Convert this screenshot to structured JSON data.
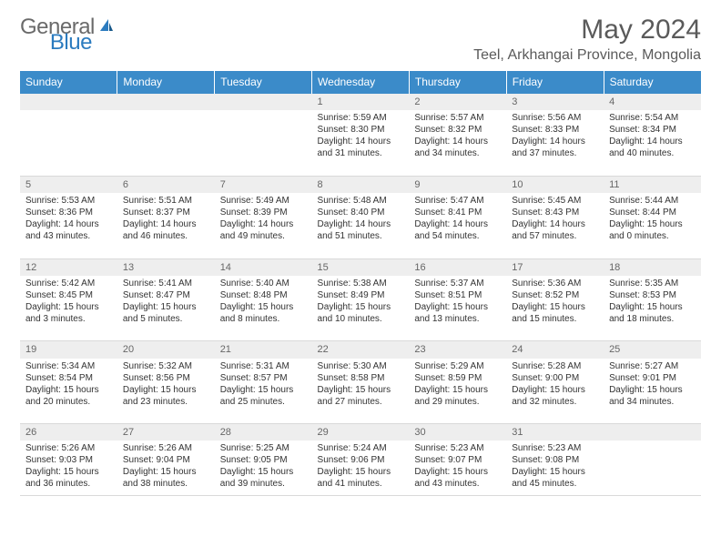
{
  "brand": {
    "general": "General",
    "blue": "Blue"
  },
  "title": "May 2024",
  "location": "Teel, Arkhangai Province, Mongolia",
  "colors": {
    "header_bg": "#3b8bc9",
    "header_text": "#ffffff",
    "daynum_bg": "#eeeeee",
    "border_top": "#3b8bc9",
    "cell_border": "#d9d9d9",
    "text": "#333333",
    "logo_gray": "#6a6a6a",
    "logo_blue": "#2b7bbf"
  },
  "weekdays": [
    "Sunday",
    "Monday",
    "Tuesday",
    "Wednesday",
    "Thursday",
    "Friday",
    "Saturday"
  ],
  "weeks": [
    {
      "nums": [
        "",
        "",
        "",
        "1",
        "2",
        "3",
        "4"
      ],
      "cells": [
        {},
        {},
        {},
        {
          "sunrise": "Sunrise: 5:59 AM",
          "sunset": "Sunset: 8:30 PM",
          "day1": "Daylight: 14 hours",
          "day2": "and 31 minutes."
        },
        {
          "sunrise": "Sunrise: 5:57 AM",
          "sunset": "Sunset: 8:32 PM",
          "day1": "Daylight: 14 hours",
          "day2": "and 34 minutes."
        },
        {
          "sunrise": "Sunrise: 5:56 AM",
          "sunset": "Sunset: 8:33 PM",
          "day1": "Daylight: 14 hours",
          "day2": "and 37 minutes."
        },
        {
          "sunrise": "Sunrise: 5:54 AM",
          "sunset": "Sunset: 8:34 PM",
          "day1": "Daylight: 14 hours",
          "day2": "and 40 minutes."
        }
      ]
    },
    {
      "nums": [
        "5",
        "6",
        "7",
        "8",
        "9",
        "10",
        "11"
      ],
      "cells": [
        {
          "sunrise": "Sunrise: 5:53 AM",
          "sunset": "Sunset: 8:36 PM",
          "day1": "Daylight: 14 hours",
          "day2": "and 43 minutes."
        },
        {
          "sunrise": "Sunrise: 5:51 AM",
          "sunset": "Sunset: 8:37 PM",
          "day1": "Daylight: 14 hours",
          "day2": "and 46 minutes."
        },
        {
          "sunrise": "Sunrise: 5:49 AM",
          "sunset": "Sunset: 8:39 PM",
          "day1": "Daylight: 14 hours",
          "day2": "and 49 minutes."
        },
        {
          "sunrise": "Sunrise: 5:48 AM",
          "sunset": "Sunset: 8:40 PM",
          "day1": "Daylight: 14 hours",
          "day2": "and 51 minutes."
        },
        {
          "sunrise": "Sunrise: 5:47 AM",
          "sunset": "Sunset: 8:41 PM",
          "day1": "Daylight: 14 hours",
          "day2": "and 54 minutes."
        },
        {
          "sunrise": "Sunrise: 5:45 AM",
          "sunset": "Sunset: 8:43 PM",
          "day1": "Daylight: 14 hours",
          "day2": "and 57 minutes."
        },
        {
          "sunrise": "Sunrise: 5:44 AM",
          "sunset": "Sunset: 8:44 PM",
          "day1": "Daylight: 15 hours",
          "day2": "and 0 minutes."
        }
      ]
    },
    {
      "nums": [
        "12",
        "13",
        "14",
        "15",
        "16",
        "17",
        "18"
      ],
      "cells": [
        {
          "sunrise": "Sunrise: 5:42 AM",
          "sunset": "Sunset: 8:45 PM",
          "day1": "Daylight: 15 hours",
          "day2": "and 3 minutes."
        },
        {
          "sunrise": "Sunrise: 5:41 AM",
          "sunset": "Sunset: 8:47 PM",
          "day1": "Daylight: 15 hours",
          "day2": "and 5 minutes."
        },
        {
          "sunrise": "Sunrise: 5:40 AM",
          "sunset": "Sunset: 8:48 PM",
          "day1": "Daylight: 15 hours",
          "day2": "and 8 minutes."
        },
        {
          "sunrise": "Sunrise: 5:38 AM",
          "sunset": "Sunset: 8:49 PM",
          "day1": "Daylight: 15 hours",
          "day2": "and 10 minutes."
        },
        {
          "sunrise": "Sunrise: 5:37 AM",
          "sunset": "Sunset: 8:51 PM",
          "day1": "Daylight: 15 hours",
          "day2": "and 13 minutes."
        },
        {
          "sunrise": "Sunrise: 5:36 AM",
          "sunset": "Sunset: 8:52 PM",
          "day1": "Daylight: 15 hours",
          "day2": "and 15 minutes."
        },
        {
          "sunrise": "Sunrise: 5:35 AM",
          "sunset": "Sunset: 8:53 PM",
          "day1": "Daylight: 15 hours",
          "day2": "and 18 minutes."
        }
      ]
    },
    {
      "nums": [
        "19",
        "20",
        "21",
        "22",
        "23",
        "24",
        "25"
      ],
      "cells": [
        {
          "sunrise": "Sunrise: 5:34 AM",
          "sunset": "Sunset: 8:54 PM",
          "day1": "Daylight: 15 hours",
          "day2": "and 20 minutes."
        },
        {
          "sunrise": "Sunrise: 5:32 AM",
          "sunset": "Sunset: 8:56 PM",
          "day1": "Daylight: 15 hours",
          "day2": "and 23 minutes."
        },
        {
          "sunrise": "Sunrise: 5:31 AM",
          "sunset": "Sunset: 8:57 PM",
          "day1": "Daylight: 15 hours",
          "day2": "and 25 minutes."
        },
        {
          "sunrise": "Sunrise: 5:30 AM",
          "sunset": "Sunset: 8:58 PM",
          "day1": "Daylight: 15 hours",
          "day2": "and 27 minutes."
        },
        {
          "sunrise": "Sunrise: 5:29 AM",
          "sunset": "Sunset: 8:59 PM",
          "day1": "Daylight: 15 hours",
          "day2": "and 29 minutes."
        },
        {
          "sunrise": "Sunrise: 5:28 AM",
          "sunset": "Sunset: 9:00 PM",
          "day1": "Daylight: 15 hours",
          "day2": "and 32 minutes."
        },
        {
          "sunrise": "Sunrise: 5:27 AM",
          "sunset": "Sunset: 9:01 PM",
          "day1": "Daylight: 15 hours",
          "day2": "and 34 minutes."
        }
      ]
    },
    {
      "nums": [
        "26",
        "27",
        "28",
        "29",
        "30",
        "31",
        ""
      ],
      "cells": [
        {
          "sunrise": "Sunrise: 5:26 AM",
          "sunset": "Sunset: 9:03 PM",
          "day1": "Daylight: 15 hours",
          "day2": "and 36 minutes."
        },
        {
          "sunrise": "Sunrise: 5:26 AM",
          "sunset": "Sunset: 9:04 PM",
          "day1": "Daylight: 15 hours",
          "day2": "and 38 minutes."
        },
        {
          "sunrise": "Sunrise: 5:25 AM",
          "sunset": "Sunset: 9:05 PM",
          "day1": "Daylight: 15 hours",
          "day2": "and 39 minutes."
        },
        {
          "sunrise": "Sunrise: 5:24 AM",
          "sunset": "Sunset: 9:06 PM",
          "day1": "Daylight: 15 hours",
          "day2": "and 41 minutes."
        },
        {
          "sunrise": "Sunrise: 5:23 AM",
          "sunset": "Sunset: 9:07 PM",
          "day1": "Daylight: 15 hours",
          "day2": "and 43 minutes."
        },
        {
          "sunrise": "Sunrise: 5:23 AM",
          "sunset": "Sunset: 9:08 PM",
          "day1": "Daylight: 15 hours",
          "day2": "and 45 minutes."
        },
        {}
      ]
    }
  ]
}
